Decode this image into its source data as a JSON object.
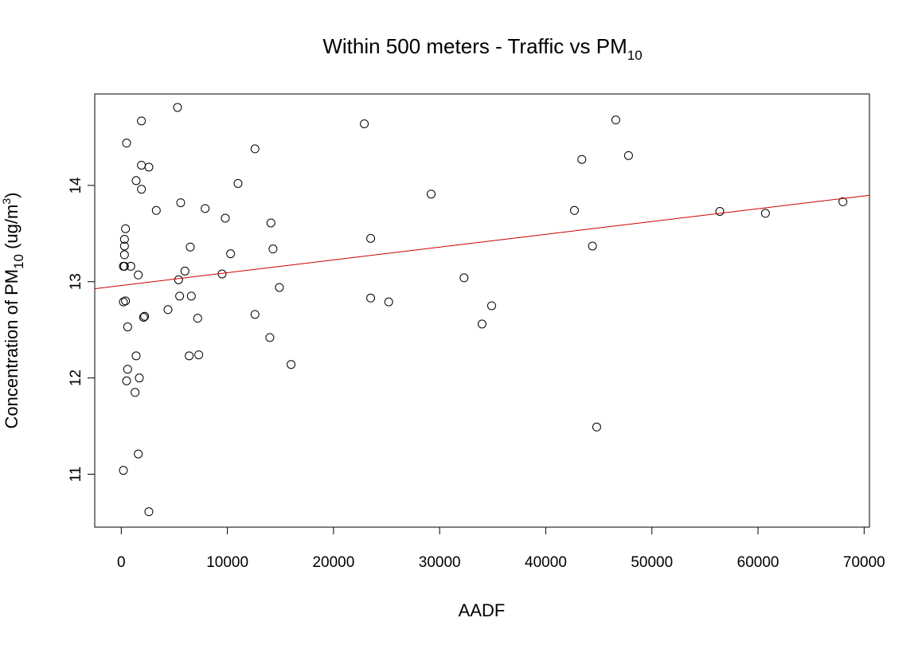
{
  "chart_data": {
    "type": "scatter",
    "title": {
      "main": "Within 500 meters - Traffic vs PM",
      "subscript": "10"
    },
    "xlabel": "AADF",
    "ylabel": {
      "prefix": "Concentration of PM",
      "subscript": "10",
      "middle": " (ug/m",
      "superscript": "3",
      "suffix": ")"
    },
    "xlim": [
      -2500,
      70500
    ],
    "ylim": [
      10.45,
      14.95
    ],
    "x_ticks": [
      0,
      10000,
      20000,
      30000,
      40000,
      50000,
      60000,
      70000
    ],
    "x_tick_labels": [
      "0",
      "10000",
      "20000",
      "30000",
      "40000",
      "50000",
      "60000",
      "70000"
    ],
    "y_ticks": [
      11,
      12,
      13,
      14
    ],
    "y_tick_labels": [
      "11",
      "12",
      "13",
      "14"
    ],
    "grid": false,
    "marker_color": "#000000",
    "fit_line": {
      "color": "#cc0000",
      "intercept": 12.96,
      "slope": 1.33e-05
    },
    "points": [
      {
        "x": 5300,
        "y": 14.81
      },
      {
        "x": 1900,
        "y": 14.67
      },
      {
        "x": 22900,
        "y": 14.64
      },
      {
        "x": 46600,
        "y": 14.68
      },
      {
        "x": 500,
        "y": 14.44
      },
      {
        "x": 12600,
        "y": 14.38
      },
      {
        "x": 47800,
        "y": 14.31
      },
      {
        "x": 43400,
        "y": 14.27
      },
      {
        "x": 1900,
        "y": 14.21
      },
      {
        "x": 2600,
        "y": 14.19
      },
      {
        "x": 1400,
        "y": 14.05
      },
      {
        "x": 11000,
        "y": 14.02
      },
      {
        "x": 1900,
        "y": 13.96
      },
      {
        "x": 29200,
        "y": 13.91
      },
      {
        "x": 5600,
        "y": 13.82
      },
      {
        "x": 68000,
        "y": 13.83
      },
      {
        "x": 7900,
        "y": 13.76
      },
      {
        "x": 3300,
        "y": 13.74
      },
      {
        "x": 42700,
        "y": 13.74
      },
      {
        "x": 56400,
        "y": 13.73
      },
      {
        "x": 60700,
        "y": 13.71
      },
      {
        "x": 9800,
        "y": 13.66
      },
      {
        "x": 14100,
        "y": 13.61
      },
      {
        "x": 400,
        "y": 13.55
      },
      {
        "x": 23500,
        "y": 13.45
      },
      {
        "x": 300,
        "y": 13.44
      },
      {
        "x": 300,
        "y": 13.37
      },
      {
        "x": 6500,
        "y": 13.36
      },
      {
        "x": 44400,
        "y": 13.37
      },
      {
        "x": 14300,
        "y": 13.34
      },
      {
        "x": 10300,
        "y": 13.29
      },
      {
        "x": 300,
        "y": 13.28
      },
      {
        "x": 200,
        "y": 13.16
      },
      {
        "x": 300,
        "y": 13.16
      },
      {
        "x": 900,
        "y": 13.16
      },
      {
        "x": 6000,
        "y": 13.11
      },
      {
        "x": 9500,
        "y": 13.08
      },
      {
        "x": 1600,
        "y": 13.07
      },
      {
        "x": 32300,
        "y": 13.04
      },
      {
        "x": 5400,
        "y": 13.02
      },
      {
        "x": 14900,
        "y": 12.94
      },
      {
        "x": 5500,
        "y": 12.85
      },
      {
        "x": 6600,
        "y": 12.85
      },
      {
        "x": 23500,
        "y": 12.83
      },
      {
        "x": 400,
        "y": 12.8
      },
      {
        "x": 200,
        "y": 12.79
      },
      {
        "x": 25200,
        "y": 12.79
      },
      {
        "x": 34900,
        "y": 12.75
      },
      {
        "x": 4400,
        "y": 12.71
      },
      {
        "x": 12600,
        "y": 12.66
      },
      {
        "x": 2100,
        "y": 12.63
      },
      {
        "x": 2200,
        "y": 12.64
      },
      {
        "x": 7200,
        "y": 12.62
      },
      {
        "x": 34000,
        "y": 12.56
      },
      {
        "x": 600,
        "y": 12.53
      },
      {
        "x": 14000,
        "y": 12.42
      },
      {
        "x": 1400,
        "y": 12.23
      },
      {
        "x": 6400,
        "y": 12.23
      },
      {
        "x": 7300,
        "y": 12.24
      },
      {
        "x": 16000,
        "y": 12.14
      },
      {
        "x": 600,
        "y": 12.09
      },
      {
        "x": 1700,
        "y": 12.0
      },
      {
        "x": 500,
        "y": 11.97
      },
      {
        "x": 1300,
        "y": 11.85
      },
      {
        "x": 44800,
        "y": 11.49
      },
      {
        "x": 1600,
        "y": 11.21
      },
      {
        "x": 200,
        "y": 11.04
      },
      {
        "x": 2600,
        "y": 10.61
      }
    ]
  }
}
